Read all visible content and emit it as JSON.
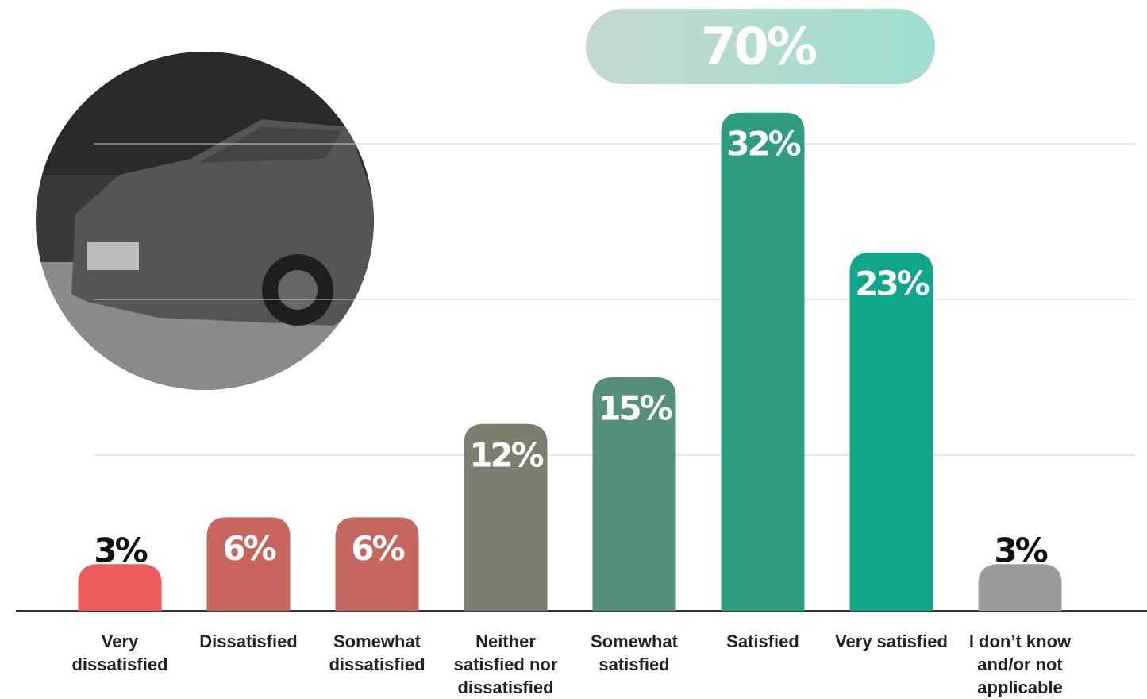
{
  "chart_data": {
    "type": "bar",
    "categories": [
      "Very dissatisfied",
      "Dissatisfied",
      "Somewhat dissatisfied",
      "Neither satisfied nor dissatisfied",
      "Somewhat satisfied",
      "Satisfied",
      "Very satisfied",
      "I don’t know and/or not applicable"
    ],
    "values": [
      3,
      6,
      6,
      12,
      15,
      32,
      23,
      3
    ],
    "value_labels": [
      "3%",
      "6%",
      "6%",
      "12%",
      "15%",
      "32%",
      "23%",
      "3%"
    ],
    "colors": [
      "#ec5b5b",
      "#c8665e",
      "#c5675f",
      "#7d7e6d",
      "#55907a",
      "#2f9b81",
      "#0fa68a",
      "#999a9c"
    ],
    "total": 70,
    "total_label": "70%",
    "ylim": [
      0,
      35
    ],
    "yticks": [
      10,
      20,
      30
    ],
    "grid": true
  }
}
